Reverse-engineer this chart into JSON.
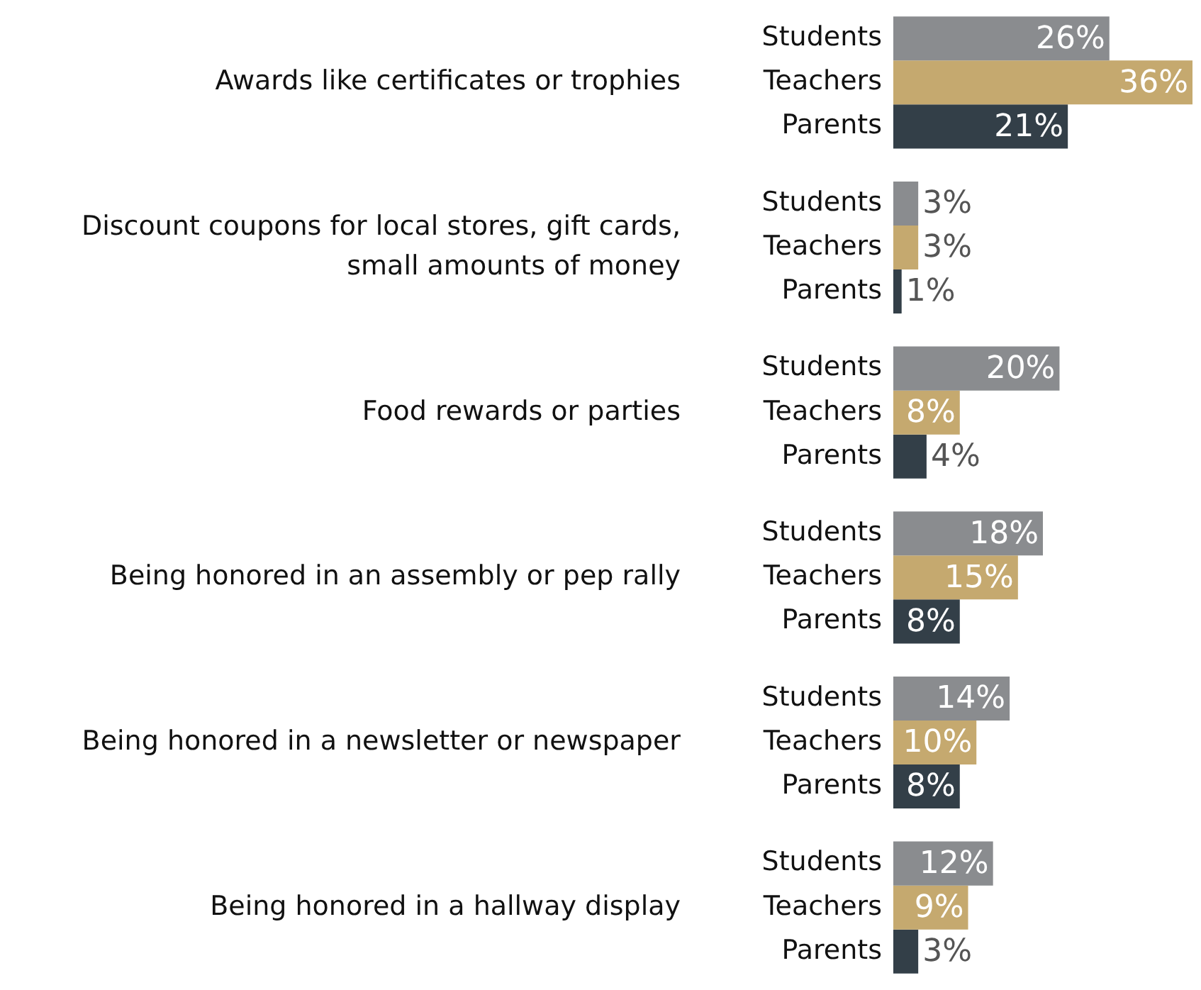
{
  "chart_data": {
    "type": "bar",
    "orientation": "horizontal",
    "categories": [
      "Awards like certificates or trophies",
      "Discount coupons for local stores, gift cards, small amounts of money",
      "Food rewards or parties",
      "Being honored in an assembly or pep rally",
      "Being honored in a newsletter or newspaper",
      "Being honored in a hallway display"
    ],
    "series": [
      {
        "name": "Students",
        "color": "#8a8c8f",
        "values": [
          26,
          3,
          20,
          18,
          14,
          12
        ],
        "value_labels": [
          "26%",
          "3%",
          "20%",
          "18%",
          "14%",
          "12%"
        ]
      },
      {
        "name": "Teachers",
        "color": "#c5a96f",
        "values": [
          36,
          3,
          8,
          15,
          10,
          9
        ],
        "value_labels": [
          "36%",
          "3%",
          "8%",
          "15%",
          "10%",
          "9%"
        ]
      },
      {
        "name": "Parents",
        "color": "#333f48",
        "values": [
          21,
          1,
          4,
          8,
          8,
          3
        ],
        "value_labels": [
          "21%",
          "1%",
          "4%",
          "8%",
          "8%",
          "3%"
        ]
      }
    ],
    "legend": false,
    "grid": false
  }
}
